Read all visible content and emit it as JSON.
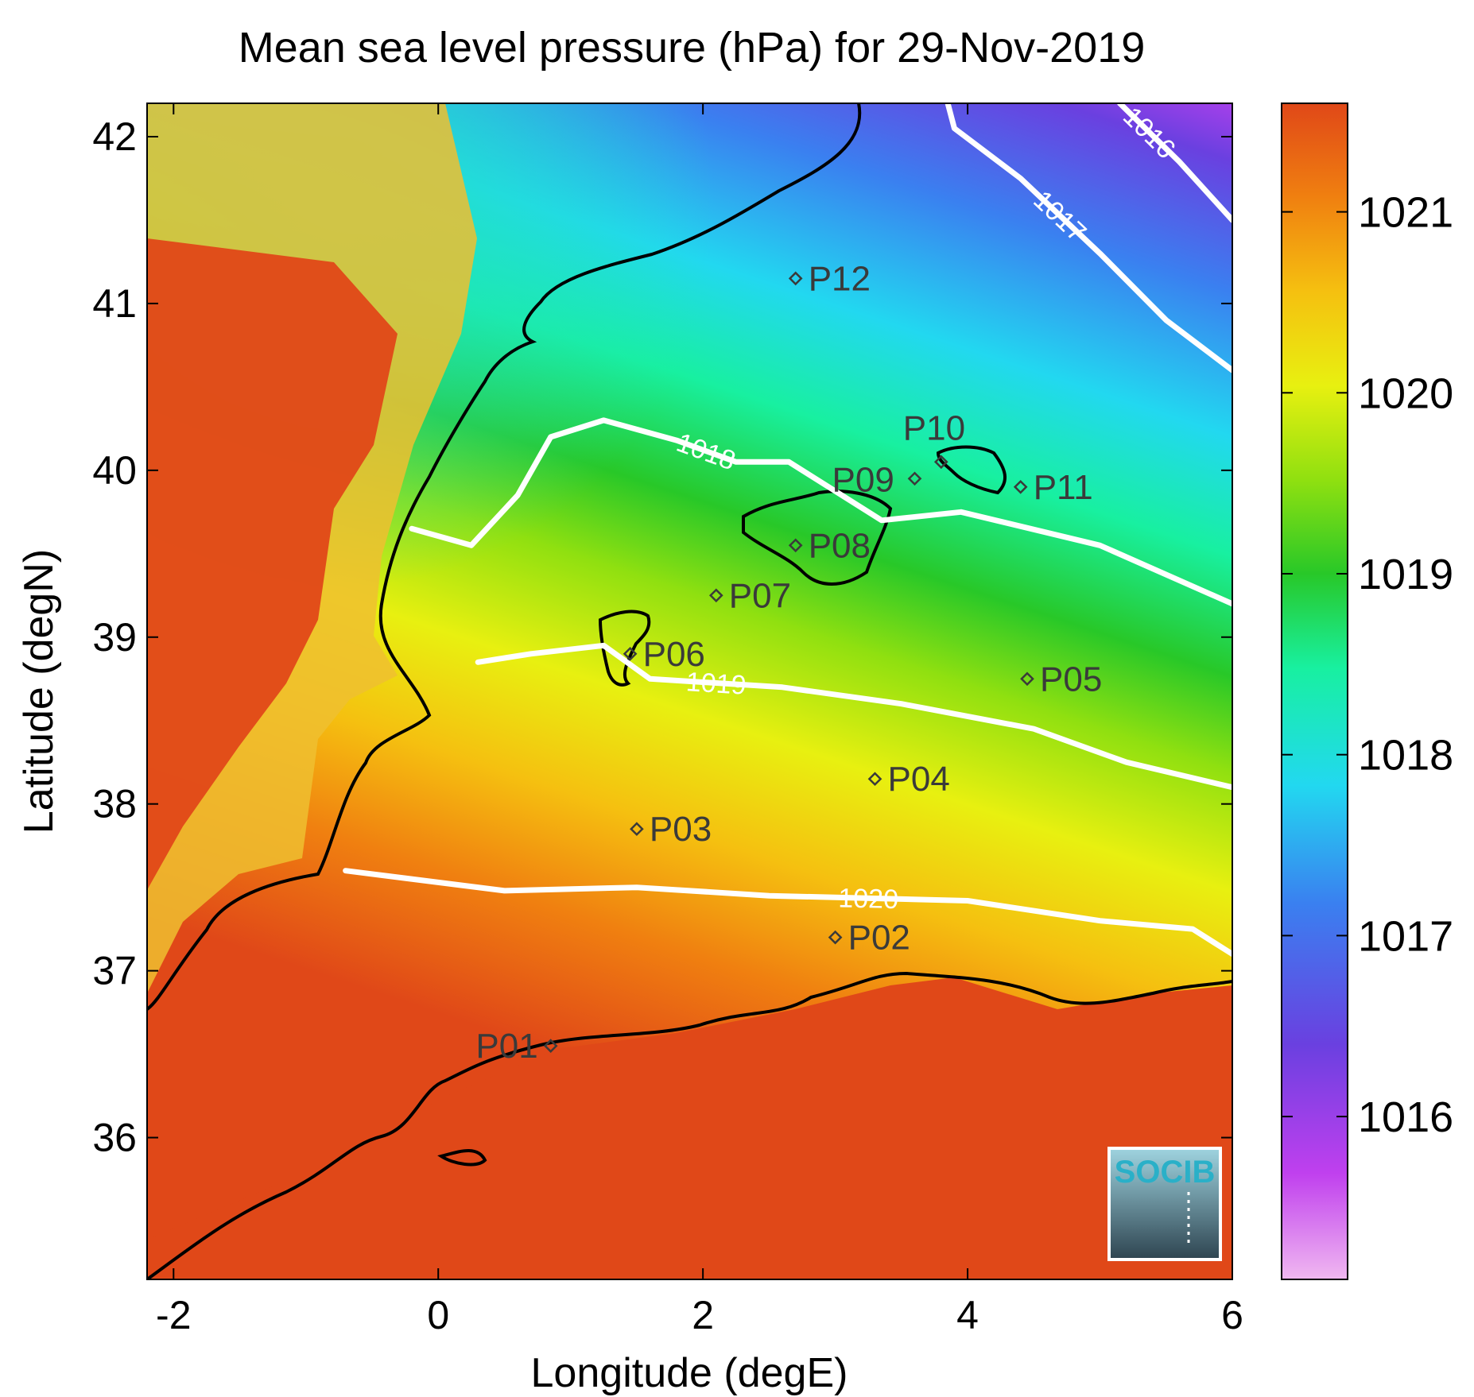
{
  "chart_data": {
    "type": "heatmap",
    "title": "Mean sea level pressure (hPa) for 29-Nov-2019",
    "xlabel": "Longitude (degE)",
    "ylabel": "Latitude (degN)",
    "xlim": [
      -2.2,
      6.0
    ],
    "ylim": [
      35.15,
      42.2
    ],
    "x_ticks": [
      -2,
      0,
      2,
      4,
      6
    ],
    "y_ticks": [
      36,
      37,
      38,
      39,
      40,
      41,
      42
    ],
    "colorbar": {
      "range": [
        1015.1,
        1021.6
      ],
      "ticks": [
        1016,
        1017,
        1018,
        1019,
        1020,
        1021
      ],
      "colors": [
        "#f0b8f0",
        "#c040ee",
        "#6a40e0",
        "#3a80f0",
        "#22d8f0",
        "#18f0a0",
        "#28c828",
        "#90e010",
        "#e8f010",
        "#f5c010",
        "#f08010",
        "#e04818"
      ]
    },
    "contours": [
      {
        "label": "1016",
        "points": [
          [
            5.15,
            42.2
          ],
          [
            5.6,
            41.85
          ],
          [
            6.0,
            41.5
          ]
        ]
      },
      {
        "label": "1017",
        "points": [
          [
            3.85,
            42.2
          ],
          [
            3.9,
            42.05
          ],
          [
            4.4,
            41.75
          ],
          [
            5.0,
            41.3
          ],
          [
            5.5,
            40.9
          ],
          [
            6.0,
            40.6
          ]
        ]
      },
      {
        "label": "1018",
        "points": [
          [
            -0.2,
            39.65
          ],
          [
            0.25,
            39.55
          ],
          [
            0.6,
            39.85
          ],
          [
            0.85,
            40.2
          ],
          [
            1.25,
            40.3
          ],
          [
            1.8,
            40.18
          ],
          [
            2.25,
            40.05
          ],
          [
            2.65,
            40.05
          ],
          [
            2.95,
            39.9
          ],
          [
            3.35,
            39.7
          ],
          [
            3.95,
            39.75
          ],
          [
            5.0,
            39.55
          ],
          [
            6.0,
            39.2
          ]
        ]
      },
      {
        "label": "1019",
        "points": [
          [
            0.3,
            38.85
          ],
          [
            0.7,
            38.9
          ],
          [
            1.25,
            38.95
          ],
          [
            1.6,
            38.75
          ],
          [
            2.6,
            38.7
          ],
          [
            3.5,
            38.6
          ],
          [
            4.5,
            38.45
          ],
          [
            5.2,
            38.25
          ],
          [
            6.0,
            38.1
          ]
        ]
      },
      {
        "label": "1020",
        "points": [
          [
            -0.7,
            37.6
          ],
          [
            0.5,
            37.48
          ],
          [
            1.5,
            37.5
          ],
          [
            2.5,
            37.45
          ],
          [
            4.0,
            37.42
          ],
          [
            5.0,
            37.3
          ],
          [
            5.7,
            37.25
          ],
          [
            6.0,
            37.1
          ]
        ]
      }
    ],
    "stations": [
      {
        "name": "P01",
        "lon": 0.85,
        "lat": 36.55
      },
      {
        "name": "P02",
        "lon": 3.0,
        "lat": 37.2
      },
      {
        "name": "P03",
        "lon": 1.5,
        "lat": 37.85
      },
      {
        "name": "P04",
        "lon": 3.3,
        "lat": 38.15
      },
      {
        "name": "P05",
        "lon": 4.45,
        "lat": 38.75
      },
      {
        "name": "P06",
        "lon": 1.45,
        "lat": 38.9
      },
      {
        "name": "P07",
        "lon": 2.1,
        "lat": 39.25
      },
      {
        "name": "P08",
        "lon": 2.7,
        "lat": 39.55
      },
      {
        "name": "P09",
        "lon": 3.6,
        "lat": 39.95
      },
      {
        "name": "P10",
        "lon": 3.8,
        "lat": 40.05
      },
      {
        "name": "P11",
        "lon": 4.4,
        "lat": 39.9
      },
      {
        "name": "P12",
        "lon": 2.7,
        "lat": 41.15
      }
    ]
  },
  "logo": {
    "text": "SOCIB"
  }
}
